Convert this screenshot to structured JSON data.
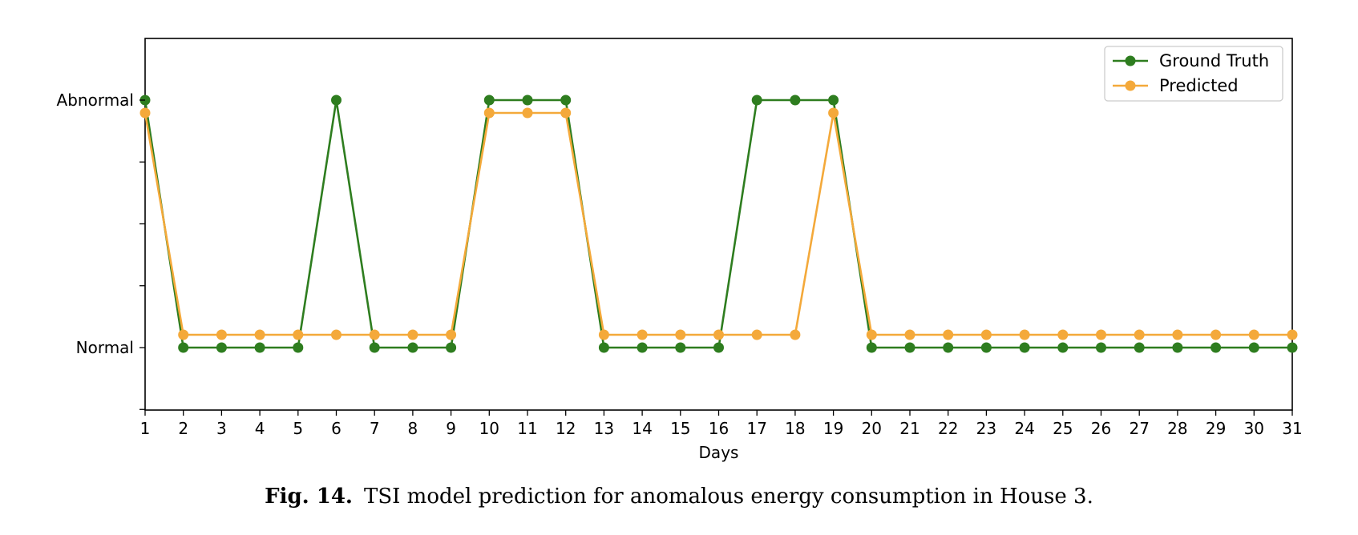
{
  "chart_data": {
    "type": "line",
    "xlabel": "Days",
    "ylabel": "",
    "x": [
      1,
      2,
      3,
      4,
      5,
      6,
      7,
      8,
      9,
      10,
      11,
      12,
      13,
      14,
      15,
      16,
      17,
      18,
      19,
      20,
      21,
      22,
      23,
      24,
      25,
      26,
      27,
      28,
      29,
      30,
      31
    ],
    "xlim": [
      1,
      31
    ],
    "y_categories": [
      "Normal",
      "Abnormal"
    ],
    "legend_position": "top-right",
    "grid": false,
    "series": [
      {
        "name": "Ground Truth",
        "color": "#2e7d1f",
        "values": [
          1,
          0,
          0,
          0,
          0,
          1,
          0,
          0,
          0,
          1,
          1,
          1,
          0,
          0,
          0,
          0,
          1,
          1,
          1,
          0,
          0,
          0,
          0,
          0,
          0,
          0,
          0,
          0,
          0,
          0,
          0
        ]
      },
      {
        "name": "Predicted",
        "color": "#f4a93a",
        "values": [
          1,
          0,
          0,
          0,
          0,
          0,
          0,
          0,
          0,
          1,
          1,
          1,
          0,
          0,
          0,
          0,
          0,
          0,
          1,
          0,
          0,
          0,
          0,
          0,
          0,
          0,
          0,
          0,
          0,
          0,
          0
        ]
      }
    ]
  },
  "caption": {
    "label": "Fig. 14.",
    "text": "TSI model prediction for anomalous energy consumption in House 3."
  }
}
